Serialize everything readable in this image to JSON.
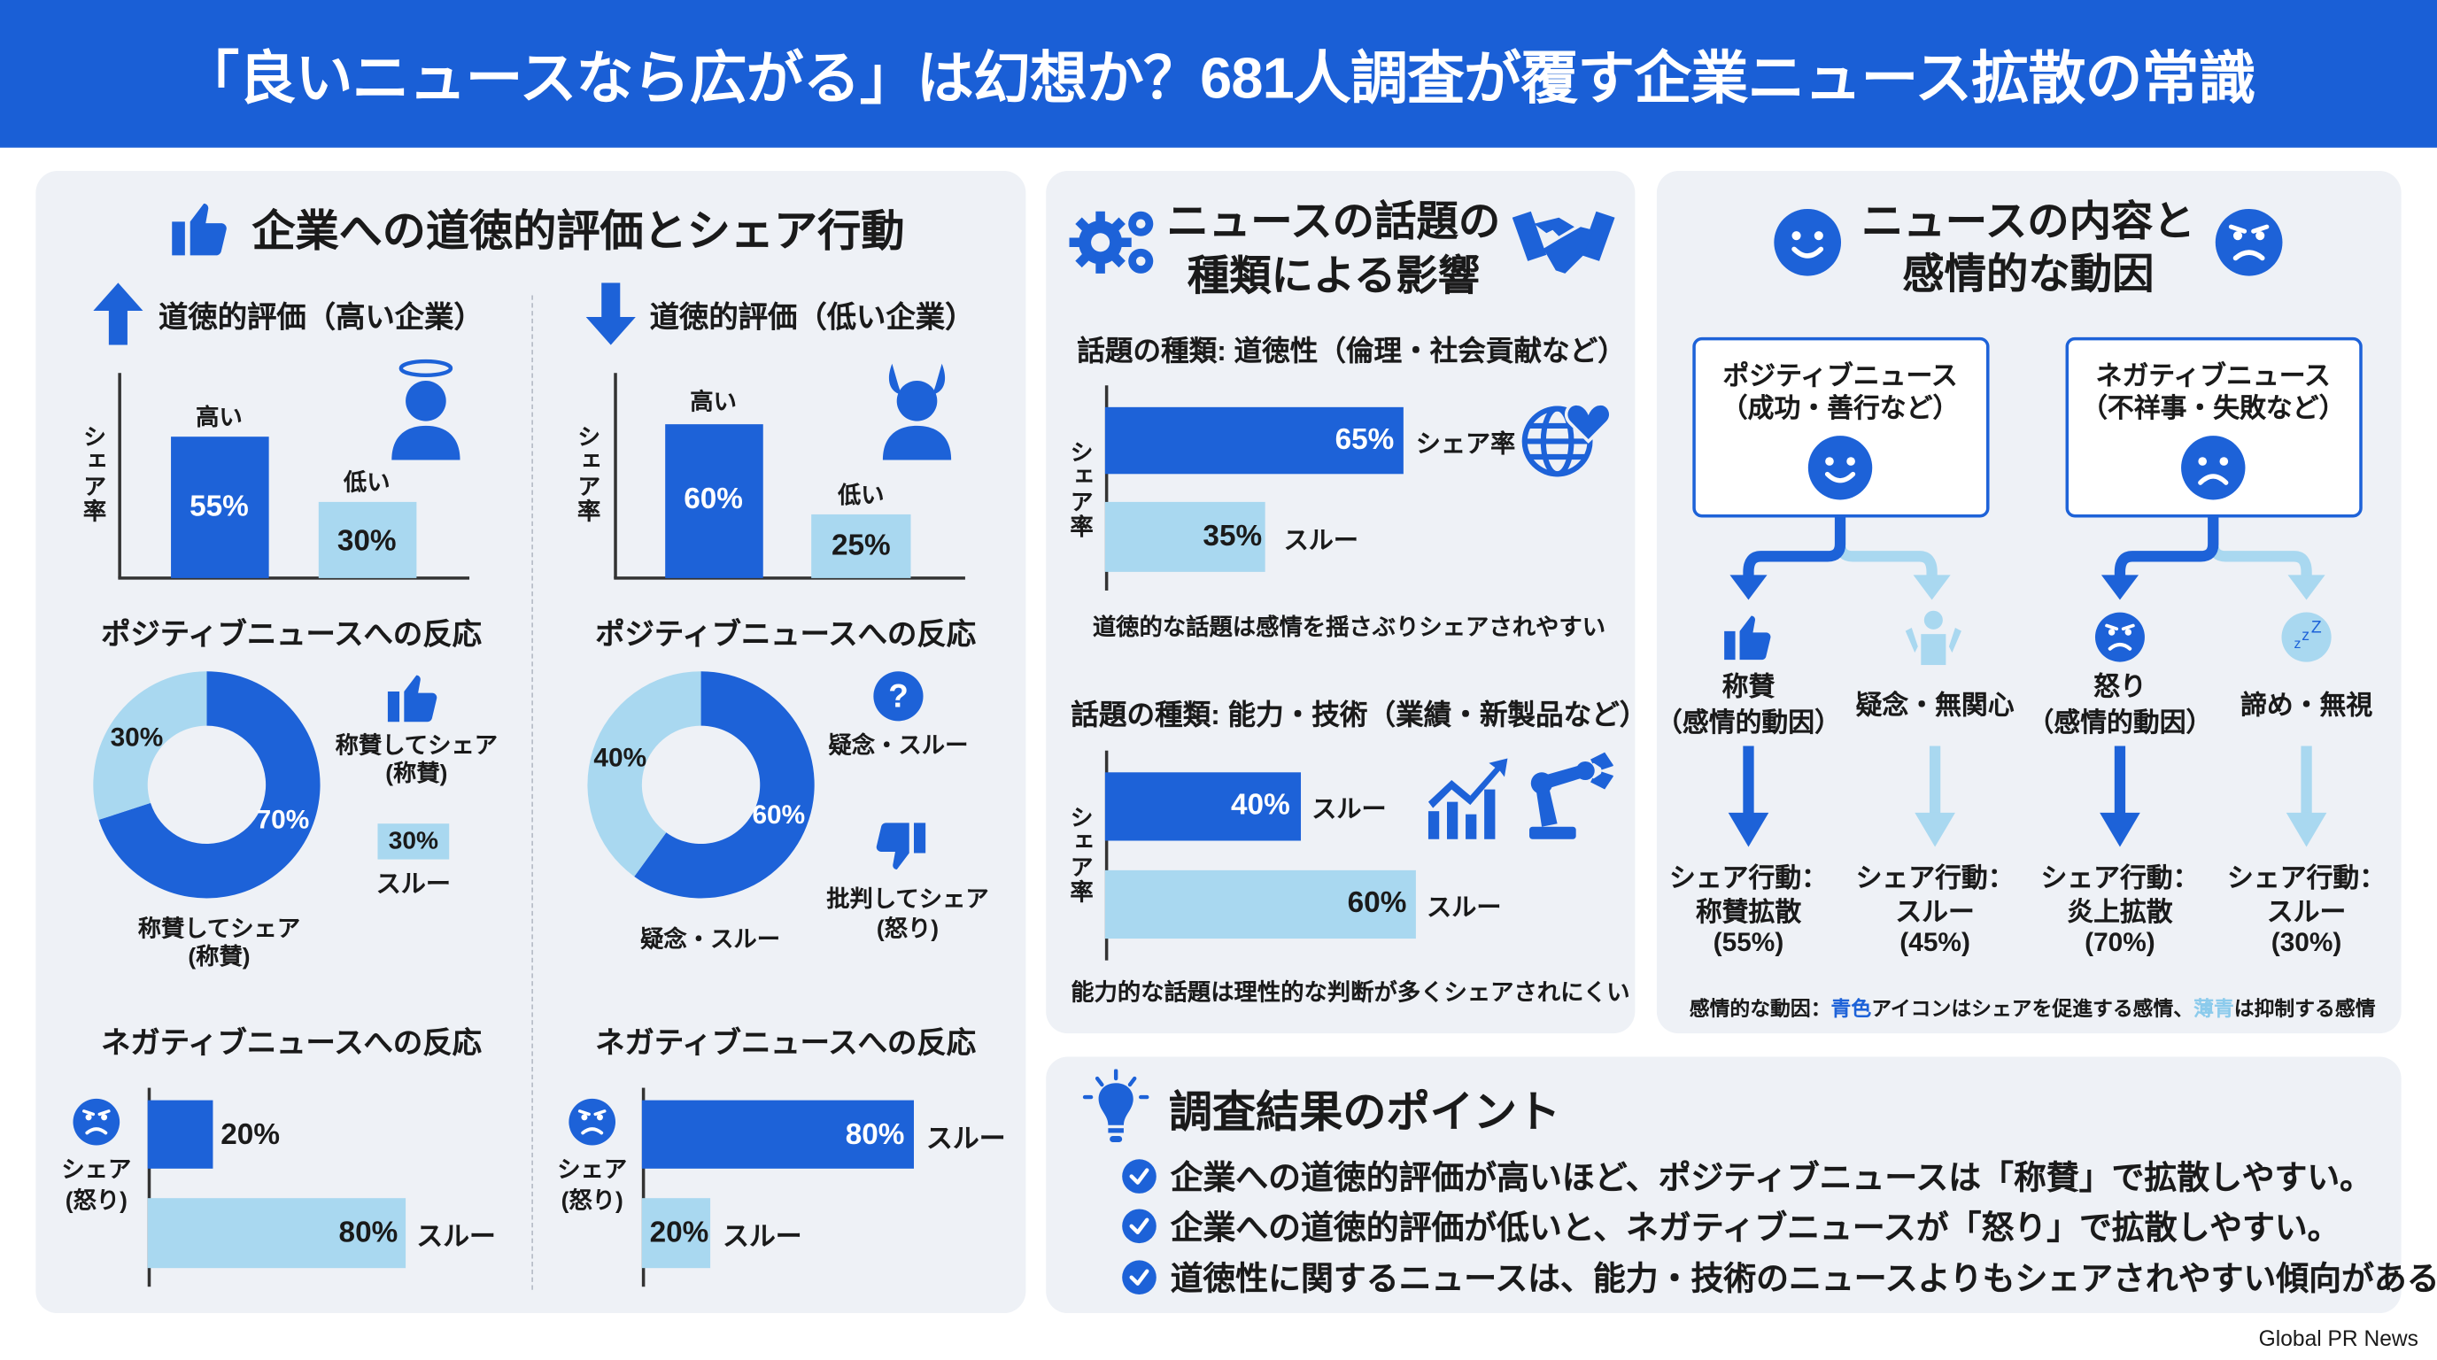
{
  "header": {
    "title": "「良いニュースなら広がる」は幻想か？681人調査が覆す企業ニュース拡散の常識"
  },
  "colors": {
    "brand": "#1a5fd6",
    "dark_blue": "#1d62d8",
    "light_blue": "#a9d8f0",
    "panel": "#eef1f6"
  },
  "left_panel": {
    "title": "企業への道徳的評価とシェア行動",
    "high": {
      "heading": "道徳的評価（高い企業）",
      "y_label": "シェア率",
      "bar_high_label": "高い",
      "bar_low_label": "低い",
      "bar_high_value": "55%",
      "bar_low_value": "30%"
    },
    "low": {
      "heading": "道徳的評価（低い企業）",
      "y_label": "シェア率",
      "bar_high_label": "高い",
      "bar_low_label": "低い",
      "bar_high_value": "60%",
      "bar_low_value": "25%"
    },
    "pos_left": {
      "heading": "ポジティブニュースへの反応",
      "dark_value": "70%",
      "light_value": "30%",
      "legend_praise": "称賛してシェア",
      "legend_praise_sub": "(称賛)",
      "legend_box": "30%",
      "legend_through": "スルー",
      "bottom_label": "称賛してシェア",
      "bottom_label_sub": "(称賛)"
    },
    "pos_right": {
      "heading": "ポジティブニュースへの反応",
      "dark_value": "60%",
      "light_value": "40%",
      "legend_doubt": "疑念・スルー",
      "legend_criticize": "批判してシェア",
      "legend_criticize_sub": "(怒り)",
      "bottom_label": "疑念・スルー"
    },
    "neg_left": {
      "heading": "ネガティブニュースへの反応",
      "icon_label": "シェア",
      "icon_label_sub": "(怒り)",
      "dark_value": "20%",
      "light_value": "80%",
      "light_label": "スルー"
    },
    "neg_right": {
      "heading": "ネガティブニュースへの反応",
      "icon_label": "シェア",
      "icon_label_sub": "(怒り)",
      "dark_value": "80%",
      "dark_label": "スルー",
      "light_value": "20%",
      "light_label": "スルー"
    }
  },
  "middle_panel": {
    "title_line1": "ニュースの話題の",
    "title_line2": "種類による影響",
    "moral": {
      "heading": "話題の種類: 道徳性（倫理・社会貢献など）",
      "y_label": "シェア率",
      "dark_value": "65%",
      "dark_label": "シェア率",
      "light_value": "35%",
      "light_label": "スルー",
      "note": "道徳的な話題は感情を揺さぶりシェアされやすい"
    },
    "ability": {
      "heading": "話題の種類: 能力・技術（業績・新製品など）",
      "y_label": "シェア率",
      "dark_value": "40%",
      "dark_label": "スルー",
      "light_value": "60%",
      "light_label": "スルー",
      "note": "能力的な話題は理性的な判断が多くシェアされにくい"
    }
  },
  "right_panel": {
    "title_line1": "ニュースの内容と",
    "title_line2": "感情的な動因",
    "positive_box": {
      "line1": "ポジティブニュース",
      "line2": "（成功・善行など）"
    },
    "negative_box": {
      "line1": "ネガティブニュース",
      "line2": "（不祥事・失敗など）"
    },
    "branches": [
      {
        "emotion": "称賛",
        "emotion_sub": "（感情的動因）",
        "action": "シェア行動：",
        "result": "称賛拡散",
        "pct": "(55%)"
      },
      {
        "emotion": "疑念・無関心",
        "action": "シェア行動：",
        "result": "スルー",
        "pct": "(45%)"
      },
      {
        "emotion": "怒り",
        "emotion_sub": "（感情的動因）",
        "action": "シェア行動：",
        "result": "炎上拡散",
        "pct": "(70%)"
      },
      {
        "emotion": "諦め・無視",
        "action": "シェア行動：",
        "result": "スルー",
        "pct": "(30%)"
      }
    ],
    "legend": {
      "prefix": "感情的な動因：",
      "blue": "青色",
      "mid": "アイコンはシェアを促進する感情、",
      "light": "薄青",
      "suffix": "は抑制する感情"
    }
  },
  "points": {
    "title": "調査結果のポイント",
    "items": [
      "企業への道徳的評価が高いほど、ポジティブニュースは「称賛」で拡散しやすい。",
      "企業への道徳的評価が低いと、ネガティブニュースが「怒り」で拡散しやすい。",
      "道徳性に関するニュースは、能力・技術のニュースよりもシェアされやすい傾向がある。"
    ]
  },
  "footer": {
    "credit": "Global PR News"
  },
  "chart_data": [
    {
      "type": "bar",
      "title": "道徳的評価（高い企業）",
      "ylabel": "シェア率",
      "categories": [
        "高い",
        "低い"
      ],
      "values": [
        55,
        30
      ]
    },
    {
      "type": "bar",
      "title": "道徳的評価（低い企業）",
      "ylabel": "シェア率",
      "categories": [
        "高い",
        "低い"
      ],
      "values": [
        60,
        25
      ]
    },
    {
      "type": "pie",
      "title": "ポジティブニュースへの反応",
      "categories": [
        "称賛してシェア（称賛）",
        "スルー"
      ],
      "values": [
        70,
        30
      ]
    },
    {
      "type": "pie",
      "title": "ポジティブニュースへの反応",
      "categories": [
        "疑念・スルー",
        "疑念・スルー"
      ],
      "values": [
        60,
        40
      ]
    },
    {
      "type": "bar",
      "title": "ネガティブニュースへの反応",
      "categories": [
        "シェア（怒り）",
        "スルー"
      ],
      "values": [
        20,
        80
      ]
    },
    {
      "type": "bar",
      "title": "ネガティブニュースへの反応",
      "categories": [
        "スルー",
        "スルー"
      ],
      "values": [
        80,
        20
      ]
    },
    {
      "type": "bar",
      "title": "話題の種類: 道徳性（倫理・社会貢献など）",
      "ylabel": "シェア率",
      "categories": [
        "シェア率",
        "スルー"
      ],
      "values": [
        65,
        35
      ]
    },
    {
      "type": "bar",
      "title": "話題の種類: 能力・技術（業績・新製品など）",
      "ylabel": "シェア率",
      "categories": [
        "スルー",
        "スルー"
      ],
      "values": [
        40,
        60
      ]
    }
  ]
}
